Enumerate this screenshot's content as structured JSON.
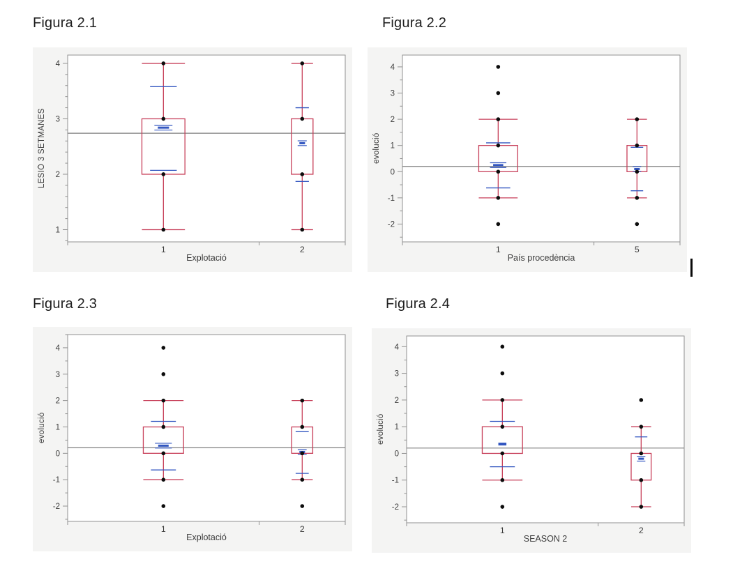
{
  "colors": {
    "box_outline": "#c73e58",
    "mean_marker": "#3256c0",
    "grand_mean_line": "#7f7f7f",
    "data_dot": "#0d0d0d",
    "frame_border": "#909090",
    "panel_background": "#f4f4f3",
    "tick_text": "#3d3d3d",
    "heading_text": "#1e1e1e",
    "cursor": "#0a0a0a"
  },
  "chart_data": [
    {
      "type": "box",
      "title": "Figura 2.1",
      "ylabel": "LESIÓ 3 SETMANES",
      "xlabel": "Explotació",
      "yticks": [
        1,
        2,
        3,
        4
      ],
      "minor_tick_step": 0.2,
      "ydomain": [
        0.78,
        4.15
      ],
      "grand_mean": 2.74,
      "x_divider": 0.69,
      "grid": false,
      "groups": [
        {
          "label": "1",
          "center": 0.345,
          "box_width": 0.155,
          "q1": 2,
          "q3": 3,
          "whisker_low": 1,
          "whisker_high": 4,
          "points": [
            1,
            2,
            3,
            4
          ],
          "mean": 2.84,
          "mean_minus_sd": 2.07,
          "mean_plus_sd": 3.58,
          "mean_marker": "triple"
        },
        {
          "label": "2",
          "center": 0.845,
          "box_width": 0.078,
          "q1": 2,
          "q3": 3,
          "whisker_low": 1,
          "whisker_high": 4,
          "points": [
            1,
            2,
            3,
            4
          ],
          "mean": 2.56,
          "mean_minus_sd": 1.87,
          "mean_plus_sd": 3.2,
          "mean_marker": "triple"
        }
      ]
    },
    {
      "type": "box",
      "title": "Figura 2.2",
      "ylabel": "evolució",
      "xlabel": "País procedència",
      "yticks": [
        -2,
        -1,
        0,
        1,
        2,
        3,
        4
      ],
      "minor_tick_step": 0.5,
      "ydomain": [
        -2.68,
        4.45
      ],
      "grand_mean": 0.2,
      "x_divider": 0.69,
      "grid": false,
      "groups": [
        {
          "label": "1",
          "center": 0.345,
          "box_width": 0.14,
          "q1": 0,
          "q3": 1,
          "whisker_low": -1,
          "whisker_high": 2,
          "points": [
            -2,
            -1,
            0,
            1,
            2,
            3,
            4
          ],
          "mean": 0.25,
          "mean_minus_sd": -0.62,
          "mean_plus_sd": 1.1,
          "mean_marker": "triple"
        },
        {
          "label": "5",
          "center": 0.845,
          "box_width": 0.072,
          "q1": 0,
          "q3": 1,
          "whisker_low": -1,
          "whisker_high": 2,
          "points": [
            -2,
            -1,
            0,
            1,
            2
          ],
          "mean": 0.1,
          "mean_minus_sd": -0.73,
          "mean_plus_sd": 0.93,
          "mean_marker": "triple"
        }
      ]
    },
    {
      "type": "box",
      "title": "Figura 2.3",
      "ylabel": "evolució",
      "xlabel": "Explotació",
      "yticks": [
        -2,
        -1,
        0,
        1,
        2,
        3,
        4
      ],
      "minor_tick_step": 0.5,
      "ydomain": [
        -2.58,
        4.5
      ],
      "grand_mean": 0.21,
      "x_divider": 0.69,
      "grid": false,
      "groups": [
        {
          "label": "1",
          "center": 0.345,
          "box_width": 0.145,
          "q1": 0,
          "q3": 1,
          "whisker_low": -1,
          "whisker_high": 2,
          "points": [
            -2,
            -1,
            0,
            1,
            2,
            3,
            4
          ],
          "mean": 0.29,
          "mean_minus_sd": -0.63,
          "mean_plus_sd": 1.21,
          "mean_marker": "triple"
        },
        {
          "label": "2",
          "center": 0.845,
          "box_width": 0.076,
          "q1": 0,
          "q3": 1,
          "whisker_low": -1,
          "whisker_high": 2,
          "points": [
            -2,
            -1,
            0,
            1,
            2
          ],
          "mean": 0.05,
          "mean_minus_sd": -0.76,
          "mean_plus_sd": 0.82,
          "mean_marker": "triple"
        }
      ]
    },
    {
      "type": "box",
      "title": "Figura 2.4",
      "ylabel": "evolució",
      "xlabel": "SEASON 2",
      "yticks": [
        -2,
        -1,
        0,
        1,
        2,
        3,
        4
      ],
      "minor_tick_step": 0.5,
      "ydomain": [
        -2.6,
        4.4
      ],
      "grand_mean": 0.2,
      "x_divider": 0.69,
      "grid": false,
      "groups": [
        {
          "label": "1",
          "center": 0.345,
          "box_width": 0.145,
          "q1": 0,
          "q3": 1,
          "whisker_low": -1,
          "whisker_high": 2,
          "points": [
            -2,
            -1,
            0,
            1,
            2,
            3,
            4
          ],
          "mean": 0.35,
          "mean_minus_sd": -0.5,
          "mean_plus_sd": 1.2,
          "mean_marker": "single"
        },
        {
          "label": "2",
          "center": 0.845,
          "box_width": 0.072,
          "q1": -1,
          "q3": 0,
          "whisker_low": -2,
          "whisker_high": 1,
          "points": [
            -2,
            -1,
            0,
            1,
            2
          ],
          "mean": -0.2,
          "mean_minus_sd": null,
          "mean_plus_sd": 0.62,
          "mean_marker": "triple"
        }
      ]
    }
  ]
}
